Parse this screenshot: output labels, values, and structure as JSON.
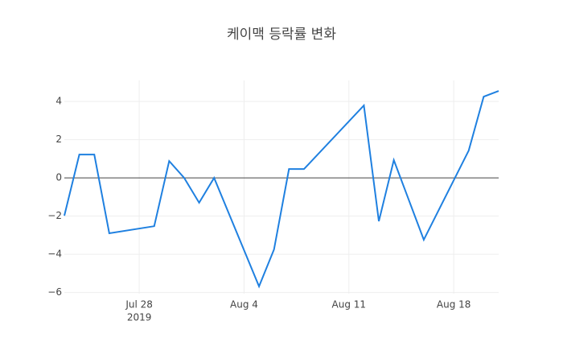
{
  "chart_data": {
    "type": "line",
    "title": "케이맥 등락률 변화",
    "x": [
      "2019-07-23",
      "2019-07-24",
      "2019-07-25",
      "2019-07-26",
      "2019-07-29",
      "2019-07-30",
      "2019-07-31",
      "2019-08-01",
      "2019-08-02",
      "2019-08-05",
      "2019-08-06",
      "2019-08-07",
      "2019-08-08",
      "2019-08-12",
      "2019-08-13",
      "2019-08-14",
      "2019-08-16",
      "2019-08-19",
      "2019-08-20",
      "2019-08-21"
    ],
    "series": [
      {
        "color": "#1f80e0",
        "values": [
          -1.98,
          1.22,
          1.22,
          -2.9,
          -2.53,
          0.88,
          0.0,
          -1.3,
          0.0,
          -5.68,
          -3.75,
          0.46,
          0.46,
          3.79,
          -2.27,
          0.93,
          -3.24,
          1.43,
          4.25,
          4.55
        ]
      }
    ],
    "xlim": [
      "2019-07-23",
      "2019-08-21"
    ],
    "xticks": [
      {
        "value": "2019-07-28",
        "label": [
          "Jul 28",
          "2019"
        ]
      },
      {
        "value": "2019-08-04",
        "label": [
          "Aug 4"
        ]
      },
      {
        "value": "2019-08-11",
        "label": [
          "Aug 11"
        ]
      },
      {
        "value": "2019-08-18",
        "label": [
          "Aug 18"
        ]
      }
    ],
    "ylim": [
      -6.06,
      5.1
    ],
    "yticks": [
      {
        "value": -6,
        "label": "−6"
      },
      {
        "value": -4,
        "label": "−4"
      },
      {
        "value": -2,
        "label": "−2"
      },
      0,
      2,
      4
    ],
    "grid": true,
    "zeroline": true
  }
}
